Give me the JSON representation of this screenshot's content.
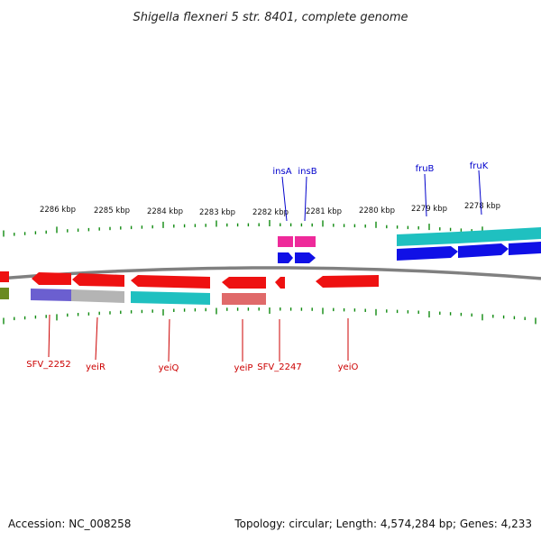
{
  "title": "Shigella flexneri 5 str. 8401, complete genome",
  "footer": {
    "accession": "Accession: NC_008258",
    "summary": "Topology: circular; Length: 4,574,284 bp; Genes: 4,233"
  },
  "colors": {
    "backbone": "#808080",
    "ticks": "#0f8a0f",
    "gene_red": "#ee1111",
    "cds_cyan": "#1fc0c0",
    "cds_blue": "#1010e6",
    "cds_pink": "#ee2a9a",
    "cds_purple": "#6b5fd0",
    "cds_gray": "#b4b4b4",
    "cds_salmon": "#e06a6a",
    "cds_olive": "#6a8a20",
    "label_blue": "#0000cc",
    "label_red": "#cc0000"
  },
  "ruler": {
    "labels": [
      "2286 kbp",
      "2285 kbp",
      "2284 kbp",
      "2283 kbp",
      "2282 kbp",
      "2281 kbp",
      "2280 kbp",
      "2279 kbp",
      "2278 kbp"
    ]
  },
  "gene_labels": {
    "forward": [
      "insA",
      "insB",
      "fruB",
      "fruK"
    ],
    "reverse": [
      "SFV_2252",
      "yeiR",
      "yeiQ",
      "yeiP",
      "SFV_2247",
      "yeiO"
    ]
  }
}
